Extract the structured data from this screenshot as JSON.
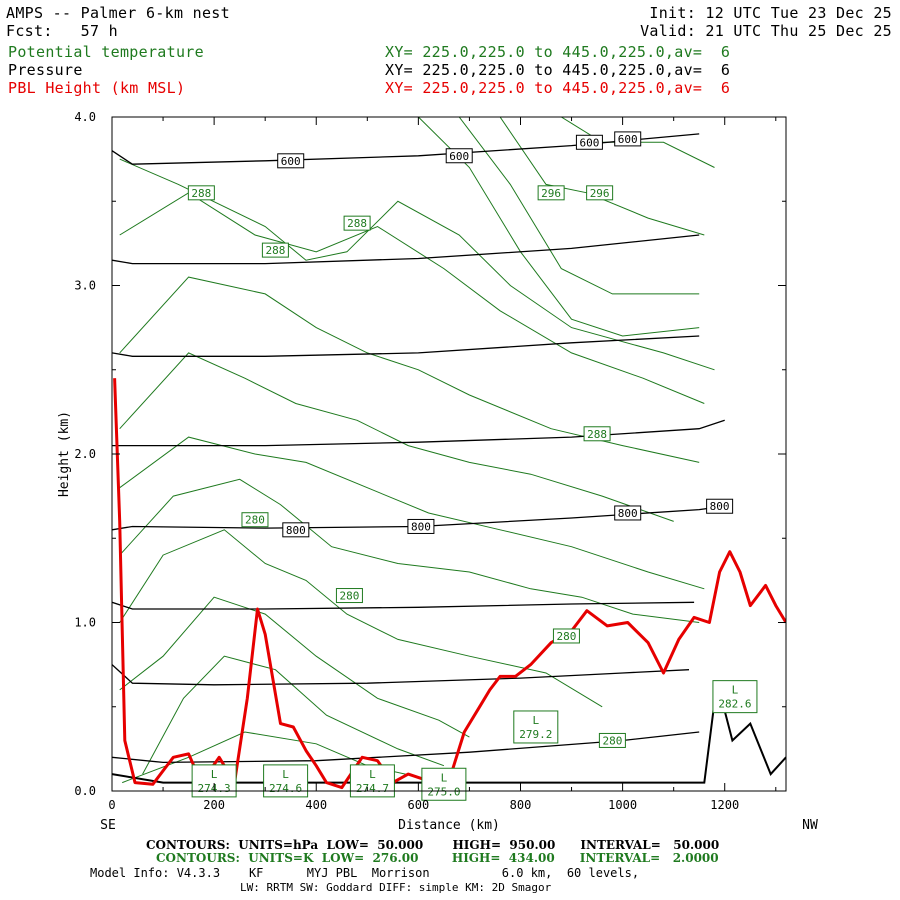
{
  "header": {
    "title": "AMPS -- Palmer 6-km nest",
    "fcst": "Fcst:   57 h",
    "init": "Init: 12 UTC Tue 23 Dec 25",
    "valid": "Valid: 21 UTC Thu 25 Dec 25",
    "lines": [
      {
        "name": "Potential temperature",
        "xy": "XY= 225.0,225.0 to 445.0,225.0,av=  6",
        "color": "#1f7a1f"
      },
      {
        "name": "Pressure",
        "xy": "XY= 225.0,225.0 to 445.0,225.0,av=  6",
        "color": "#000000"
      },
      {
        "name": "PBL Height (km MSL)",
        "xy": "XY= 225.0,225.0 to 445.0,225.0,av=  6",
        "color": "#e60000"
      }
    ]
  },
  "footer": {
    "contours_p": "CONTOURS:  UNITS=hPa  LOW=  50.000       HIGH=  950.00      INTERVAL=   50.000",
    "contours_k": "CONTOURS:  UNITS=K  LOW=  276.00        HIGH=  434.00      INTERVAL=   2.0000",
    "model1": "Model Info: V4.3.3    KF      MYJ PBL  Morrison          6.0 km,  60 levels,",
    "model2": "LW: RRTM SW: Goddard DIFF: simple KM: 2D Smagor"
  },
  "chart_data": {
    "type": "line",
    "xlabel": "Distance (km)",
    "ylabel": "Height (km)",
    "x_left_label": "SE",
    "x_right_label": "NW",
    "xlim": [
      0,
      1320
    ],
    "ylim": [
      0.0,
      4.0
    ],
    "xticks": [
      0,
      200,
      400,
      600,
      800,
      1000,
      1200
    ],
    "yticks": [
      "0.0",
      "1.0",
      "2.0",
      "3.0",
      "4.0"
    ],
    "colors": {
      "pressure": "#000000",
      "theta": "#1f7a1f",
      "pbl": "#e60000"
    },
    "pressure_labels": [
      {
        "text": "600",
        "x": 350,
        "y": 3.74
      },
      {
        "text": "600",
        "x": 680,
        "y": 3.77
      },
      {
        "text": "600",
        "x": 935,
        "y": 3.85
      },
      {
        "text": "600",
        "x": 1010,
        "y": 3.87
      },
      {
        "text": "800",
        "x": 360,
        "y": 1.55
      },
      {
        "text": "800",
        "x": 605,
        "y": 1.57
      },
      {
        "text": "800",
        "x": 1010,
        "y": 1.65
      },
      {
        "text": "800",
        "x": 1190,
        "y": 1.69
      }
    ],
    "theta_labels": [
      {
        "text": "288",
        "x": 175,
        "y": 3.55
      },
      {
        "text": "288",
        "x": 480,
        "y": 3.37
      },
      {
        "text": "288",
        "x": 320,
        "y": 3.21
      },
      {
        "text": "296",
        "x": 860,
        "y": 3.55
      },
      {
        "text": "296",
        "x": 955,
        "y": 3.55
      },
      {
        "text": "288",
        "x": 950,
        "y": 2.12
      },
      {
        "text": "280",
        "x": 280,
        "y": 1.61
      },
      {
        "text": "280",
        "x": 465,
        "y": 1.16
      },
      {
        "text": "280",
        "x": 890,
        "y": 0.92
      },
      {
        "text": "280",
        "x": 980,
        "y": 0.3
      }
    ],
    "lows": [
      {
        "l": "L",
        "value": "279.2",
        "x": 830,
        "y": 0.38
      },
      {
        "l": "L",
        "value": "282.6",
        "x": 1220,
        "y": 0.56
      },
      {
        "l": "L",
        "value": "274.3",
        "x": 200,
        "y": 0.06
      },
      {
        "l": "L",
        "value": "274.6",
        "x": 340,
        "y": 0.06
      },
      {
        "l": "L",
        "value": "274.7",
        "x": 510,
        "y": 0.06
      },
      {
        "l": "L",
        "value": "275.0",
        "x": 650,
        "y": 0.04
      }
    ],
    "pressure_series": [
      {
        "values": [
          [
            0,
            0.1
          ],
          [
            100,
            0.05
          ],
          [
            1100,
            0.05
          ],
          [
            1160,
            0.05
          ],
          [
            1185,
            0.65
          ],
          [
            1215,
            0.3
          ],
          [
            1250,
            0.4
          ],
          [
            1290,
            0.1
          ],
          [
            1320,
            0.2
          ]
        ]
      },
      {
        "values": [
          [
            0,
            0.2
          ],
          [
            100,
            0.17
          ],
          [
            400,
            0.18
          ],
          [
            700,
            0.23
          ],
          [
            1000,
            0.3
          ],
          [
            1150,
            0.35
          ]
        ]
      },
      {
        "values": [
          [
            0,
            0.75
          ],
          [
            40,
            0.64
          ],
          [
            200,
            0.63
          ],
          [
            500,
            0.64
          ],
          [
            800,
            0.67
          ],
          [
            1000,
            0.7
          ],
          [
            1130,
            0.72
          ]
        ]
      },
      {
        "values": [
          [
            0,
            1.12
          ],
          [
            40,
            1.08
          ],
          [
            300,
            1.08
          ],
          [
            600,
            1.09
          ],
          [
            900,
            1.11
          ],
          [
            1140,
            1.12
          ]
        ]
      },
      {
        "values": [
          [
            0,
            1.55
          ],
          [
            40,
            1.57
          ],
          [
            300,
            1.56
          ],
          [
            600,
            1.57
          ],
          [
            900,
            1.62
          ],
          [
            1150,
            1.67
          ],
          [
            1200,
            1.69
          ]
        ]
      },
      {
        "values": [
          [
            0,
            2.05
          ],
          [
            40,
            2.05
          ],
          [
            300,
            2.05
          ],
          [
            600,
            2.07
          ],
          [
            900,
            2.1
          ],
          [
            1150,
            2.15
          ],
          [
            1200,
            2.2
          ]
        ]
      },
      {
        "values": [
          [
            0,
            2.6
          ],
          [
            40,
            2.58
          ],
          [
            300,
            2.58
          ],
          [
            600,
            2.6
          ],
          [
            900,
            2.66
          ],
          [
            1150,
            2.7
          ]
        ]
      },
      {
        "values": [
          [
            0,
            3.15
          ],
          [
            40,
            3.13
          ],
          [
            300,
            3.13
          ],
          [
            600,
            3.16
          ],
          [
            900,
            3.22
          ],
          [
            1150,
            3.3
          ]
        ]
      },
      {
        "values": [
          [
            0,
            3.8
          ],
          [
            40,
            3.72
          ],
          [
            300,
            3.74
          ],
          [
            600,
            3.77
          ],
          [
            900,
            3.83
          ],
          [
            1150,
            3.9
          ]
        ]
      }
    ],
    "theta_series": [
      {
        "values": [
          [
            20,
            0.05
          ],
          [
            150,
            0.2
          ],
          [
            260,
            0.35
          ],
          [
            400,
            0.28
          ],
          [
            500,
            0.15
          ],
          [
            650,
            0.05
          ]
        ]
      },
      {
        "values": [
          [
            60,
            0.1
          ],
          [
            140,
            0.55
          ],
          [
            220,
            0.8
          ],
          [
            320,
            0.72
          ],
          [
            420,
            0.45
          ],
          [
            560,
            0.25
          ],
          [
            650,
            0.15
          ]
        ]
      },
      {
        "values": [
          [
            15,
            0.6
          ],
          [
            100,
            0.8
          ],
          [
            200,
            1.15
          ],
          [
            300,
            1.05
          ],
          [
            400,
            0.8
          ],
          [
            520,
            0.55
          ],
          [
            640,
            0.42
          ],
          [
            700,
            0.32
          ]
        ]
      },
      {
        "values": [
          [
            15,
            1.0
          ],
          [
            100,
            1.4
          ],
          [
            220,
            1.55
          ],
          [
            300,
            1.35
          ],
          [
            380,
            1.25
          ],
          [
            460,
            1.05
          ],
          [
            560,
            0.9
          ],
          [
            700,
            0.8
          ],
          [
            850,
            0.7
          ],
          [
            960,
            0.5
          ]
        ]
      },
      {
        "values": [
          [
            15,
            1.4
          ],
          [
            120,
            1.75
          ],
          [
            250,
            1.85
          ],
          [
            330,
            1.7
          ],
          [
            430,
            1.45
          ],
          [
            560,
            1.35
          ],
          [
            700,
            1.3
          ],
          [
            820,
            1.2
          ],
          [
            920,
            1.15
          ],
          [
            1020,
            1.05
          ],
          [
            1150,
            1.0
          ]
        ]
      },
      {
        "values": [
          [
            15,
            1.8
          ],
          [
            150,
            2.1
          ],
          [
            280,
            2.0
          ],
          [
            380,
            1.95
          ],
          [
            500,
            1.8
          ],
          [
            620,
            1.65
          ],
          [
            760,
            1.55
          ],
          [
            900,
            1.45
          ],
          [
            1050,
            1.3
          ],
          [
            1160,
            1.2
          ]
        ]
      },
      {
        "values": [
          [
            15,
            2.15
          ],
          [
            150,
            2.6
          ],
          [
            260,
            2.45
          ],
          [
            360,
            2.3
          ],
          [
            480,
            2.2
          ],
          [
            580,
            2.05
          ],
          [
            700,
            1.95
          ],
          [
            820,
            1.88
          ],
          [
            960,
            1.75
          ],
          [
            1100,
            1.6
          ]
        ]
      },
      {
        "values": [
          [
            15,
            2.6
          ],
          [
            150,
            3.05
          ],
          [
            300,
            2.95
          ],
          [
            400,
            2.75
          ],
          [
            500,
            2.6
          ],
          [
            600,
            2.5
          ],
          [
            700,
            2.35
          ],
          [
            860,
            2.15
          ],
          [
            1000,
            2.05
          ],
          [
            1150,
            1.95
          ]
        ]
      },
      {
        "values": [
          [
            15,
            3.3
          ],
          [
            150,
            3.55
          ],
          [
            280,
            3.3
          ],
          [
            400,
            3.2
          ],
          [
            520,
            3.35
          ],
          [
            650,
            3.1
          ],
          [
            760,
            2.85
          ],
          [
            900,
            2.6
          ],
          [
            1040,
            2.45
          ],
          [
            1160,
            2.3
          ]
        ]
      },
      {
        "values": [
          [
            15,
            3.75
          ],
          [
            130,
            3.6
          ],
          [
            300,
            3.35
          ],
          [
            380,
            3.15
          ],
          [
            460,
            3.2
          ],
          [
            560,
            3.5
          ],
          [
            680,
            3.3
          ],
          [
            780,
            3.0
          ],
          [
            900,
            2.75
          ],
          [
            1080,
            2.6
          ],
          [
            1180,
            2.5
          ]
        ]
      },
      {
        "values": [
          [
            600,
            4.0
          ],
          [
            700,
            3.7
          ],
          [
            800,
            3.2
          ],
          [
            900,
            2.8
          ],
          [
            1000,
            2.7
          ],
          [
            1150,
            2.75
          ]
        ]
      },
      {
        "values": [
          [
            680,
            4.0
          ],
          [
            780,
            3.6
          ],
          [
            880,
            3.1
          ],
          [
            980,
            2.95
          ],
          [
            1150,
            2.95
          ]
        ]
      },
      {
        "values": [
          [
            760,
            4.0
          ],
          [
            850,
            3.6
          ],
          [
            930,
            3.55
          ],
          [
            1050,
            3.4
          ],
          [
            1160,
            3.3
          ]
        ]
      },
      {
        "values": [
          [
            880,
            4.0
          ],
          [
            960,
            3.85
          ],
          [
            1080,
            3.85
          ],
          [
            1180,
            3.7
          ]
        ]
      }
    ],
    "pbl_series": {
      "name": "PBL Height (km MSL)",
      "values": [
        [
          5,
          2.45
        ],
        [
          15,
          1.6
        ],
        [
          25,
          0.3
        ],
        [
          45,
          0.05
        ],
        [
          80,
          0.04
        ],
        [
          120,
          0.2
        ],
        [
          150,
          0.22
        ],
        [
          175,
          0.05
        ],
        [
          210,
          0.2
        ],
        [
          240,
          0.05
        ],
        [
          265,
          0.55
        ],
        [
          285,
          1.08
        ],
        [
          300,
          0.93
        ],
        [
          330,
          0.4
        ],
        [
          355,
          0.38
        ],
        [
          380,
          0.24
        ],
        [
          400,
          0.15
        ],
        [
          420,
          0.05
        ],
        [
          450,
          0.02
        ],
        [
          490,
          0.2
        ],
        [
          520,
          0.18
        ],
        [
          550,
          0.05
        ],
        [
          580,
          0.1
        ],
        [
          620,
          0.06
        ],
        [
          660,
          0.06
        ],
        [
          690,
          0.35
        ],
        [
          720,
          0.5
        ],
        [
          740,
          0.6
        ],
        [
          760,
          0.68
        ],
        [
          790,
          0.68
        ],
        [
          820,
          0.75
        ],
        [
          860,
          0.88
        ],
        [
          900,
          0.95
        ],
        [
          930,
          1.07
        ],
        [
          970,
          0.98
        ],
        [
          1010,
          1.0
        ],
        [
          1050,
          0.88
        ],
        [
          1080,
          0.7
        ],
        [
          1110,
          0.9
        ],
        [
          1140,
          1.03
        ],
        [
          1170,
          1.0
        ],
        [
          1190,
          1.3
        ],
        [
          1210,
          1.42
        ],
        [
          1230,
          1.3
        ],
        [
          1250,
          1.1
        ],
        [
          1280,
          1.22
        ],
        [
          1300,
          1.1
        ],
        [
          1320,
          1.0
        ]
      ]
    }
  }
}
